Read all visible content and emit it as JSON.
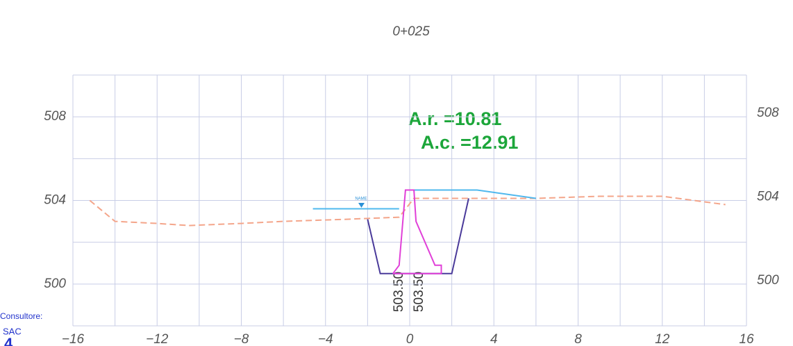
{
  "chart_data": {
    "type": "line",
    "title": "0+025",
    "xlim": [
      -16,
      16
    ],
    "ylim": [
      498,
      510
    ],
    "xticks": [
      {
        "value": -16,
        "label": "−16"
      },
      {
        "value": -12,
        "label": "−12"
      },
      {
        "value": -8,
        "label": "−8"
      },
      {
        "value": -4,
        "label": "−4"
      },
      0,
      4,
      8,
      12,
      16
    ],
    "xgrid": [
      -16,
      -14,
      -12,
      -10,
      -8,
      -6,
      -4,
      -2,
      0,
      2,
      4,
      6,
      8,
      10,
      12,
      14,
      16
    ],
    "yticks": [
      500,
      504,
      508
    ],
    "ygrid": [
      498,
      500,
      502,
      504,
      506,
      508,
      510
    ],
    "grid": true,
    "series": [
      {
        "color": "#f4a58a",
        "dash": true,
        "x": [
          -15.2,
          -14,
          -12,
          -10.5,
          -8,
          -6,
          -3,
          -0.5,
          0.2,
          3,
          6,
          9,
          12,
          15
        ],
        "values": [
          504,
          503.0,
          502.9,
          502.8,
          502.9,
          503.0,
          503.1,
          503.2,
          504.1,
          504.1,
          504.1,
          504.2,
          504.2,
          503.8
        ]
      },
      {
        "color": "#4fb8ee",
        "x": [
          -4.6,
          -0.5,
          null,
          0,
          3.2,
          6
        ],
        "values": [
          503.6,
          503.6,
          null,
          504.5,
          504.5,
          504.1
        ]
      },
      {
        "color": "#4a3a9a",
        "x": [
          -2,
          -1.4,
          2,
          2.8
        ],
        "values": [
          503.1,
          500.5,
          500.5,
          504.1
        ]
      },
      {
        "color": "#e040d8",
        "x": [
          -0.8,
          -0.5,
          -0.2,
          0.2,
          0.3,
          1.2,
          1.5,
          1.5,
          -0.8,
          -0.8
        ],
        "values": [
          500.5,
          500.9,
          504.5,
          504.5,
          503.0,
          500.9,
          500.9,
          500.5,
          500.5,
          500.5
        ]
      }
    ],
    "annotations": [
      "A.r. =10.81",
      "A.c. =12.91"
    ],
    "station_labels": [
      "503.50",
      "503.50"
    ],
    "water_label": "NAME",
    "footer": [
      "Consultore:",
      "SAC",
      "4"
    ]
  }
}
